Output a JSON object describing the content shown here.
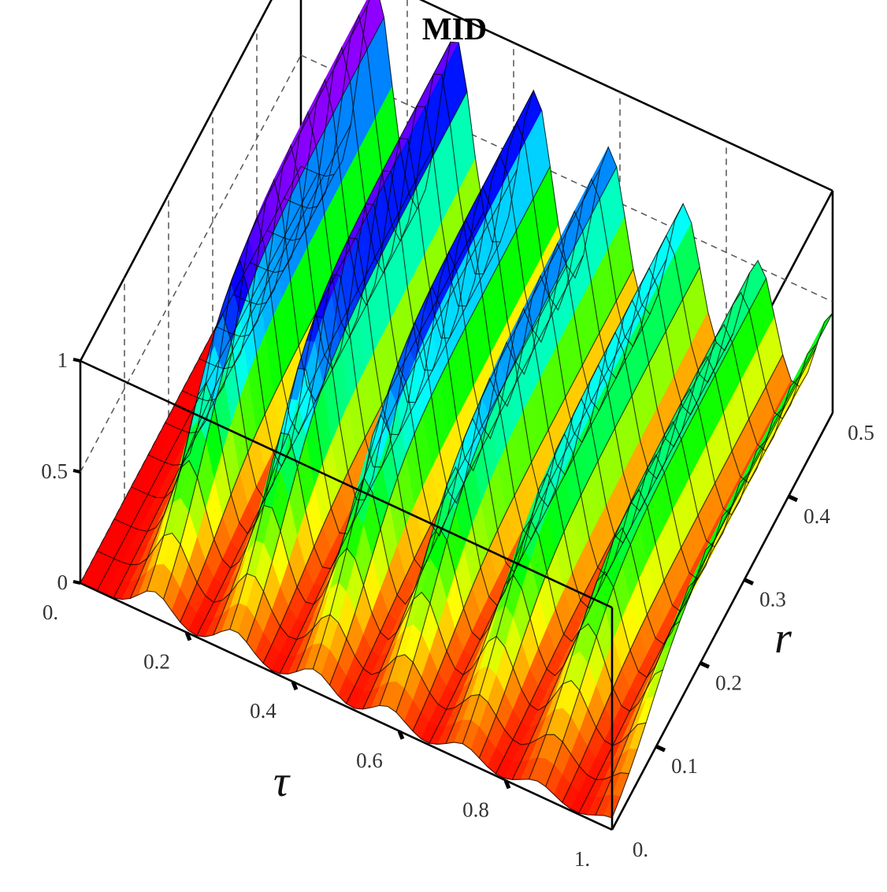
{
  "chart_data": {
    "type": "surface3d",
    "title": "MID",
    "xlabel": "τ",
    "ylabel": "r",
    "zlabel": "",
    "xlim": [
      0,
      1
    ],
    "ylim": [
      0,
      0.5
    ],
    "zlim": [
      0,
      1
    ],
    "x_ticks": [
      "0.",
      "0.2",
      "0.4",
      "0.6",
      "0.8",
      "1."
    ],
    "y_ticks": [
      "0.",
      "0.1",
      "0.2",
      "0.3",
      "0.4",
      "0.5"
    ],
    "z_ticks": [
      "0",
      "0.5",
      "1"
    ],
    "ridges": [
      {
        "tau": 0.14,
        "peak_value": 0.98
      },
      {
        "tau": 0.29,
        "peak_value": 0.91
      },
      {
        "tau": 0.44,
        "peak_value": 0.83
      },
      {
        "tau": 0.58,
        "peak_value": 0.73
      },
      {
        "tau": 0.72,
        "peak_value": 0.63
      },
      {
        "tau": 0.86,
        "peak_value": 0.53
      },
      {
        "tau": 1.0,
        "peak_value": 0.45
      }
    ],
    "colormap": [
      "#ff0000",
      "#ffff00",
      "#00ff00",
      "#00ffff",
      "#0000ff",
      "#ff00ff"
    ]
  }
}
